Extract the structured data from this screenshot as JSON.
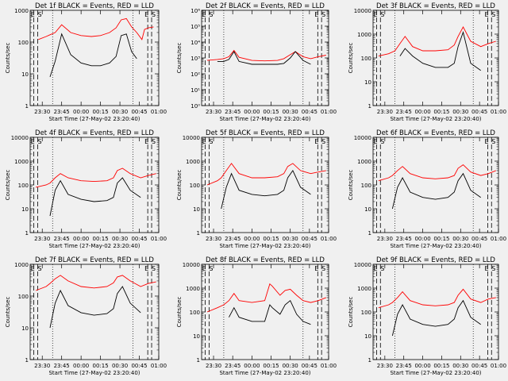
{
  "chart_data": {
    "type": "line",
    "layout": "3x3 grid",
    "xlabel": "Start Time (27-May-02 23:20:40)",
    "ylabel": "Counts/sec",
    "x_ticks": [
      "23:30",
      "23:45",
      "00:00",
      "00:15",
      "00:30",
      "00:45",
      "01:00"
    ],
    "x_range": [
      "23:20:40",
      "01:00"
    ],
    "y_scale": "log",
    "series_colors": {
      "events": "#000000",
      "lld": "#ff0000"
    },
    "panels": [
      {
        "title": "Det 1f BLACK = Events, RED = LLD",
        "ylim": [
          1,
          1000
        ],
        "y_ticks": [
          "1",
          "10",
          "100",
          "1000"
        ],
        "markers": [
          "E",
          "S",
          "E",
          "S"
        ],
        "x": [
          "23:27",
          "23:33",
          "23:36",
          "23:40",
          "23:45",
          "23:52",
          "00:00",
          "00:08",
          "00:15",
          "00:22",
          "00:27",
          "00:31",
          "00:35",
          "00:39",
          "00:43",
          "00:47",
          "00:49",
          "00:52",
          "00:56"
        ],
        "events": [
          null,
          null,
          8,
          25,
          180,
          40,
          22,
          18,
          18,
          22,
          35,
          160,
          180,
          50,
          30,
          null,
          null,
          null,
          null
        ],
        "lld": [
          120,
          150,
          170,
          200,
          350,
          200,
          160,
          150,
          160,
          200,
          280,
          500,
          550,
          300,
          200,
          120,
          250,
          280,
          300
        ]
      },
      {
        "title": "Det 2f BLACK = Events, RED = LLD",
        "ylim": [
          1,
          1000000
        ],
        "y_ticks": [
          "10⁰",
          "10¹",
          "10²",
          "10³",
          "10⁴",
          "10⁵",
          "10⁶"
        ],
        "markers": [
          "E",
          "S",
          "E",
          "S"
        ],
        "x": [
          "23:25",
          "23:33",
          "23:38",
          "23:42",
          "23:46",
          "23:50",
          "00:00",
          "00:10",
          "00:20",
          "00:25",
          "00:30",
          "00:34",
          "00:40",
          "00:46",
          "00:52",
          "00:58"
        ],
        "events": [
          null,
          600,
          600,
          800,
          2500,
          600,
          400,
          400,
          400,
          450,
          1000,
          2500,
          700,
          400,
          null,
          null
        ],
        "lld": [
          700,
          800,
          900,
          1200,
          3000,
          1100,
          700,
          650,
          700,
          900,
          1600,
          2500,
          1200,
          900,
          1200,
          1500
        ]
      },
      {
        "title": "Det 3f BLACK = Events, RED = LLD",
        "ylim": [
          1,
          10000
        ],
        "y_ticks": [
          "1",
          "10",
          "100",
          "1000",
          "10000"
        ],
        "markers": [
          "E",
          "S",
          "E",
          "S"
        ],
        "x": [
          "23:25",
          "23:33",
          "23:38",
          "23:42",
          "23:46",
          "23:52",
          "00:00",
          "00:10",
          "00:20",
          "00:25",
          "00:28",
          "00:32",
          "00:38",
          "00:46",
          "00:52",
          "00:58"
        ],
        "events": [
          null,
          null,
          null,
          120,
          250,
          120,
          60,
          40,
          40,
          60,
          300,
          1200,
          60,
          30,
          null,
          null
        ],
        "lld": [
          120,
          150,
          200,
          400,
          800,
          300,
          200,
          200,
          220,
          350,
          800,
          2000,
          500,
          300,
          400,
          500
        ]
      },
      {
        "title": "Det 4f BLACK = Events, RED = LLD",
        "ylim": [
          1,
          10000
        ],
        "y_ticks": [
          "1",
          "10",
          "100",
          "1000",
          "10000"
        ],
        "markers": [
          "E",
          "S",
          "E",
          "S"
        ],
        "x": [
          "23:25",
          "23:33",
          "23:36",
          "23:40",
          "23:44",
          "23:50",
          "00:00",
          "00:10",
          "00:20",
          "00:25",
          "00:28",
          "00:32",
          "00:38",
          "00:46",
          "00:52",
          "00:58"
        ],
        "events": [
          null,
          null,
          5,
          60,
          150,
          40,
          25,
          20,
          22,
          30,
          120,
          200,
          60,
          30,
          null,
          null
        ],
        "lld": [
          80,
          100,
          120,
          200,
          300,
          200,
          150,
          140,
          150,
          200,
          400,
          500,
          300,
          200,
          250,
          300
        ]
      },
      {
        "title": "Det 5f BLACK = Events, RED = LLD",
        "ylim": [
          1,
          10000
        ],
        "y_ticks": [
          "1",
          "10",
          "100",
          "1000",
          "10000"
        ],
        "markers": [
          "E",
          "S",
          "E",
          "S"
        ],
        "x": [
          "23:25",
          "23:33",
          "23:36",
          "23:40",
          "23:44",
          "23:50",
          "00:00",
          "00:10",
          "00:20",
          "00:25",
          "00:28",
          "00:32",
          "00:38",
          "00:46",
          "00:52",
          "00:58"
        ],
        "events": [
          null,
          null,
          10,
          80,
          300,
          60,
          40,
          35,
          40,
          60,
          200,
          400,
          80,
          40,
          null,
          null
        ],
        "lld": [
          100,
          150,
          200,
          400,
          800,
          300,
          200,
          200,
          220,
          300,
          600,
          800,
          400,
          300,
          350,
          400
        ]
      },
      {
        "title": "Det 6f BLACK = Events, RED = LLD",
        "ylim": [
          1,
          10000
        ],
        "y_ticks": [
          "1",
          "10",
          "100",
          "1000",
          "10000"
        ],
        "markers": [
          "E",
          "S",
          "E",
          "S"
        ],
        "x": [
          "23:25",
          "23:33",
          "23:36",
          "23:40",
          "23:44",
          "23:50",
          "00:00",
          "00:10",
          "00:20",
          "00:25",
          "00:28",
          "00:32",
          "00:38",
          "00:46",
          "00:52",
          "00:58"
        ],
        "events": [
          null,
          null,
          10,
          80,
          200,
          50,
          30,
          25,
          30,
          50,
          150,
          300,
          60,
          30,
          null,
          null
        ],
        "lld": [
          150,
          200,
          250,
          400,
          600,
          300,
          200,
          180,
          200,
          250,
          500,
          700,
          350,
          250,
          300,
          400
        ]
      },
      {
        "title": "Det 7f BLACK = Events, RED = LLD",
        "ylim": [
          1,
          1000
        ],
        "y_ticks": [
          "1",
          "10",
          "100",
          "1000"
        ],
        "markers": [
          "E",
          "S",
          "E",
          "S"
        ],
        "x": [
          "23:25",
          "23:33",
          "23:36",
          "23:40",
          "23:44",
          "23:50",
          "00:00",
          "00:10",
          "00:20",
          "00:25",
          "00:28",
          "00:32",
          "00:38",
          "00:46",
          "00:52",
          "00:58"
        ],
        "events": [
          null,
          null,
          10,
          60,
          150,
          50,
          30,
          25,
          28,
          40,
          120,
          200,
          60,
          30,
          null,
          null
        ],
        "lld": [
          150,
          200,
          250,
          350,
          450,
          300,
          200,
          180,
          200,
          260,
          400,
          450,
          300,
          200,
          250,
          280
        ]
      },
      {
        "title": "Det 8f BLACK = Events, RED = LLD",
        "ylim": [
          1,
          10000
        ],
        "y_ticks": [
          "1",
          "10",
          "100",
          "1000",
          "10000"
        ],
        "markers": [
          "E",
          "S",
          "E",
          "S"
        ],
        "x": [
          "23:25",
          "23:33",
          "23:38",
          "23:42",
          "23:46",
          "23:50",
          "00:00",
          "00:10",
          "00:14",
          "00:16",
          "00:22",
          "00:26",
          "00:30",
          "00:35",
          "00:40",
          "00:46",
          "00:52",
          "00:58"
        ],
        "events": [
          null,
          null,
          null,
          60,
          150,
          60,
          40,
          40,
          200,
          150,
          80,
          200,
          300,
          80,
          40,
          30,
          null,
          null
        ],
        "lld": [
          100,
          150,
          200,
          300,
          600,
          300,
          250,
          300,
          1500,
          1200,
          500,
          800,
          900,
          500,
          300,
          250,
          300,
          400
        ]
      },
      {
        "title": "Det 9f BLACK = Events, RED = LLD",
        "ylim": [
          1,
          10000
        ],
        "y_ticks": [
          "1",
          "10",
          "100",
          "1000",
          "10000"
        ],
        "markers": [
          "E",
          "S",
          "E",
          "S"
        ],
        "x": [
          "23:25",
          "23:33",
          "23:36",
          "23:40",
          "23:44",
          "23:50",
          "00:00",
          "00:10",
          "00:20",
          "00:25",
          "00:28",
          "00:32",
          "00:38",
          "00:46",
          "00:52",
          "00:58"
        ],
        "events": [
          null,
          null,
          10,
          80,
          200,
          50,
          30,
          25,
          30,
          50,
          150,
          300,
          60,
          30,
          null,
          null
        ],
        "lld": [
          150,
          200,
          250,
          400,
          700,
          300,
          200,
          180,
          200,
          250,
          500,
          900,
          350,
          250,
          350,
          400
        ]
      }
    ]
  }
}
